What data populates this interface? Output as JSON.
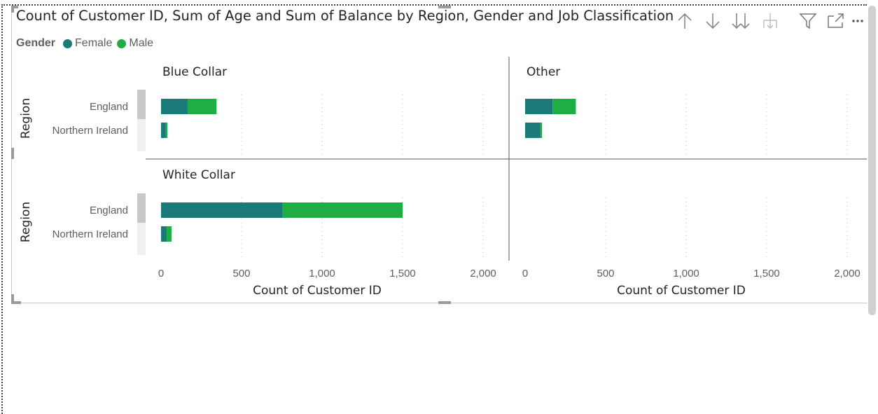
{
  "title": "Count of Customer ID, Sum of Age and Sum of Balance by Region, Gender and Job Classification",
  "toolbar": {
    "icons": [
      "sort-ascending-icon",
      "sort-descending-icon",
      "expand-all-down-icon",
      "drill-down-icon",
      "filter-icon",
      "focus-mode-icon",
      "more-options-icon"
    ]
  },
  "legend": {
    "title": "Gender",
    "items": [
      {
        "label": "Female",
        "color": "#1a7a7a"
      },
      {
        "label": "Male",
        "color": "#1fae44"
      }
    ]
  },
  "chart_data": {
    "type": "bar",
    "orientation": "horizontal",
    "stacked": true,
    "small_multiples_by": "Job Classification",
    "xlabel": "Count of Customer ID",
    "ylabel": "Region",
    "xlim": [
      0,
      2000
    ],
    "xticks": [
      0,
      500,
      1000,
      1500,
      2000
    ],
    "xtick_labels": [
      "0",
      "500",
      "1,000",
      "1,500",
      "2,000"
    ],
    "grid": true,
    "categories": [
      "England",
      "Northern Ireland"
    ],
    "series_names": [
      "Female",
      "Male"
    ],
    "series_colors": [
      "#1a7a7a",
      "#1fae44"
    ],
    "panels": [
      {
        "title": "Blue Collar",
        "series": [
          {
            "name": "Female",
            "values": [
              165,
              30
            ]
          },
          {
            "name": "Male",
            "values": [
              180,
              10
            ]
          }
        ]
      },
      {
        "title": "Other",
        "series": [
          {
            "name": "Female",
            "values": [
              170,
              95
            ]
          },
          {
            "name": "Male",
            "values": [
              145,
              10
            ]
          }
        ]
      },
      {
        "title": "White Collar",
        "series": [
          {
            "name": "Female",
            "values": [
              755,
              35
            ]
          },
          {
            "name": "Male",
            "values": [
              745,
              30
            ]
          }
        ]
      }
    ]
  }
}
